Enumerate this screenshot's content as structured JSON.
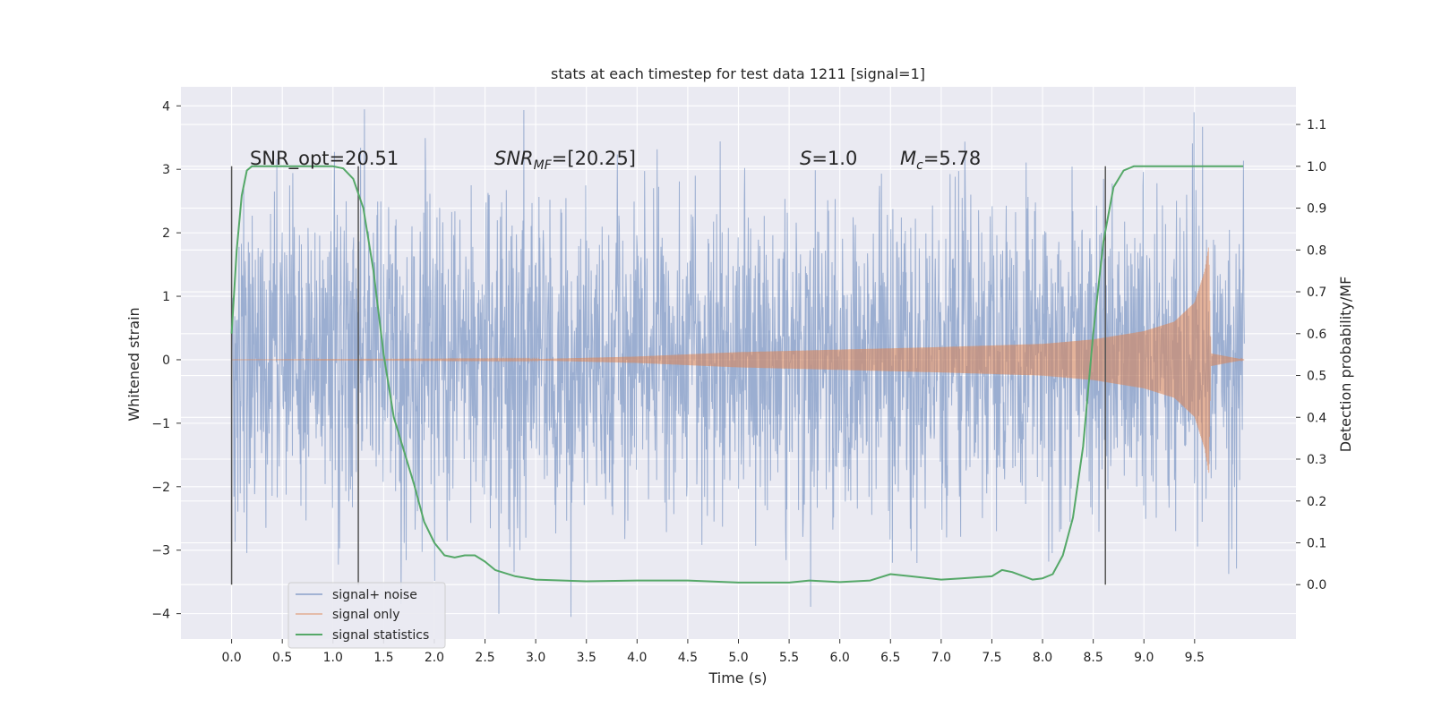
{
  "chart_data": {
    "type": "line",
    "title": "stats at each timestep for test data 1211 [signal=1]",
    "xlabel": "Time (s)",
    "ylabel": "Whitened strain",
    "y2label": "Detection probability/MF",
    "xlim": [
      -0.5,
      10.5
    ],
    "ylim": [
      -4.4,
      4.3
    ],
    "y2lim": [
      -0.13,
      1.19
    ],
    "x_ticks": [
      0.0,
      0.5,
      1.0,
      1.5,
      2.0,
      2.5,
      3.0,
      3.5,
      4.0,
      4.5,
      5.0,
      5.5,
      6.0,
      6.5,
      7.0,
      7.5,
      8.0,
      8.5,
      9.0,
      9.5
    ],
    "x_tick_labels": [
      "0.0",
      "0.5",
      "1.0",
      "1.5",
      "2.0",
      "2.5",
      "3.0",
      "3.5",
      "4.0",
      "4.5",
      "5.0",
      "5.5",
      "6.0",
      "6.5",
      "7.0",
      "7.5",
      "8.0",
      "8.5",
      "9.0",
      "9.5"
    ],
    "y_ticks": [
      -4,
      -3,
      -2,
      -1,
      0,
      1,
      2,
      3,
      4
    ],
    "y_tick_labels": [
      "−4",
      "−3",
      "−2",
      "−1",
      "0",
      "1",
      "2",
      "3",
      "4"
    ],
    "y2_ticks": [
      0.0,
      0.1,
      0.2,
      0.3,
      0.4,
      0.5,
      0.6,
      0.7,
      0.8,
      0.9,
      1.0,
      1.1
    ],
    "y2_tick_labels": [
      "0.0",
      "0.1",
      "0.2",
      "0.3",
      "0.4",
      "0.5",
      "0.6",
      "0.7",
      "0.8",
      "0.9",
      "1.0",
      "1.1"
    ],
    "grid": true,
    "legend_position": "lower-left",
    "annotations": {
      "snr_opt": "SNR_opt=20.51",
      "snr_mf_sym": "SNR",
      "snr_mf_sub": "MF",
      "snr_mf_val": "=[20.25]",
      "s_sym": "S",
      "s_val": "=1.0",
      "mc_sym": "M",
      "mc_sub": "c",
      "mc_val": "=5.78"
    },
    "vertical_markers": [
      0.0,
      1.25,
      8.62
    ],
    "series": [
      {
        "name": "signal+ noise",
        "axis": "left",
        "color": "#4c72b0",
        "x_range": [
          0.0,
          9.99
        ],
        "typical_envelope": [
          -1.9,
          2.0
        ],
        "extremes": {
          "max": 3.9,
          "min": -4.05
        }
      },
      {
        "name": "signal only",
        "axis": "left",
        "color": "#dd8452",
        "x_range": [
          0.0,
          9.99
        ],
        "amplitude_points": [
          [
            0.0,
            0.0
          ],
          [
            3.0,
            0.01
          ],
          [
            4.0,
            0.05
          ],
          [
            5.0,
            0.12
          ],
          [
            6.0,
            0.16
          ],
          [
            7.0,
            0.2
          ],
          [
            8.0,
            0.25
          ],
          [
            8.5,
            0.32
          ],
          [
            9.0,
            0.45
          ],
          [
            9.3,
            0.6
          ],
          [
            9.5,
            0.9
          ],
          [
            9.6,
            1.4
          ],
          [
            9.64,
            1.8
          ],
          [
            9.66,
            0.1
          ],
          [
            9.99,
            0.0
          ]
        ]
      },
      {
        "name": "signal statistics",
        "axis": "right",
        "color": "#55a868",
        "x": [
          0.0,
          0.05,
          0.1,
          0.15,
          0.2,
          0.3,
          0.5,
          0.8,
          1.0,
          1.1,
          1.2,
          1.3,
          1.4,
          1.5,
          1.6,
          1.7,
          1.8,
          1.9,
          2.0,
          2.1,
          2.2,
          2.3,
          2.4,
          2.5,
          2.6,
          2.8,
          3.0,
          3.5,
          4.0,
          4.5,
          5.0,
          5.5,
          5.7,
          6.0,
          6.3,
          6.5,
          6.7,
          7.0,
          7.2,
          7.5,
          7.6,
          7.7,
          7.9,
          8.0,
          8.1,
          8.2,
          8.3,
          8.4,
          8.5,
          8.6,
          8.7,
          8.8,
          8.9,
          9.0,
          9.5,
          9.98
        ],
        "y": [
          0.6,
          0.8,
          0.93,
          0.99,
          1.0,
          1.0,
          1.0,
          1.0,
          1.0,
          0.995,
          0.97,
          0.9,
          0.75,
          0.55,
          0.4,
          0.32,
          0.24,
          0.15,
          0.1,
          0.07,
          0.065,
          0.07,
          0.07,
          0.055,
          0.035,
          0.02,
          0.012,
          0.008,
          0.01,
          0.01,
          0.005,
          0.005,
          0.01,
          0.006,
          0.01,
          0.025,
          0.02,
          0.012,
          0.015,
          0.02,
          0.035,
          0.03,
          0.012,
          0.015,
          0.025,
          0.07,
          0.16,
          0.33,
          0.6,
          0.82,
          0.95,
          0.99,
          1.0,
          1.0,
          1.0,
          1.0
        ]
      }
    ]
  }
}
